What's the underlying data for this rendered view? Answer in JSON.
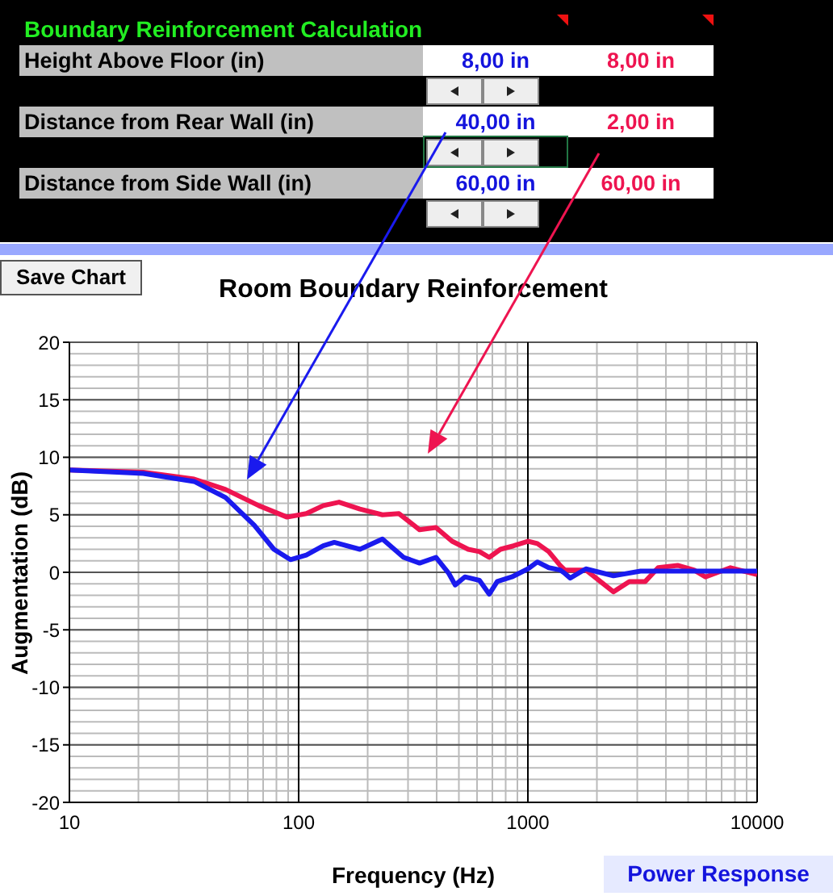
{
  "chart_data": [
    {
      "type": "other",
      "title": "Boundary Reinforcement Calculation",
      "annotations": [
        "Height Above Floor (in)",
        "8,00 in",
        "8,00 in",
        "Distance from Rear Wall (in)",
        "40,00 in",
        "2,00 in",
        "Distance from Side Wall (in)",
        "60,00 in",
        "60,00 in"
      ]
    },
    {
      "type": "line",
      "title": "Room Boundary Reinforcement",
      "xlabel": "Frequency (Hz)",
      "ylabel": "Augmentation (dB)",
      "log": "x",
      "xlim": [
        10,
        10000
      ],
      "xticks": [
        10,
        100,
        1000,
        10000
      ],
      "ylim": [
        -20,
        20
      ],
      "yticks": [
        -20,
        -15,
        -10,
        -5,
        0,
        5,
        10,
        15,
        20
      ],
      "grid": true,
      "marker": "none",
      "line_style": "solid",
      "annotations": [
        "Save Chart",
        "Power Response"
      ],
      "series": [
        {
          "color": "#1a1aee",
          "x": [
            10,
            21,
            35,
            48,
            64,
            78,
            92,
            108,
            128,
            143,
            185,
            232,
            287,
            337,
            397,
            452,
            482,
            531,
            615,
            678,
            735,
            851,
            1000,
            1100,
            1233,
            1382,
            1450,
            1530,
            1790,
            2360,
            3100,
            5300,
            10000
          ],
          "values": [
            8.9,
            8.6,
            7.9,
            6.5,
            4.1,
            2,
            1.1,
            1.5,
            2.3,
            2.6,
            2,
            2.9,
            1.3,
            0.8,
            1.3,
            -0.1,
            -1.1,
            -0.4,
            -0.7,
            -1.9,
            -0.8,
            -0.4,
            0.3,
            0.9,
            0.4,
            0.2,
            -0.1,
            -0.5,
            0.3,
            -0.3,
            0.1,
            0.1,
            0.1
          ]
        },
        {
          "color": "#ee1450",
          "x": [
            10,
            21,
            35,
            48,
            67,
            89,
            108,
            128,
            150,
            185,
            232,
            274,
            337,
            397,
            467,
            549,
            615,
            678,
            759,
            865,
            1000,
            1100,
            1233,
            1382,
            1450,
            1790,
            2360,
            2770,
            3250,
            3700,
            4500,
            5300,
            5950,
            7650,
            10000
          ],
          "values": [
            8.9,
            8.7,
            8.1,
            7.2,
            5.8,
            4.8,
            5.1,
            5.8,
            6.1,
            5.5,
            5,
            5.1,
            3.7,
            3.9,
            2.7,
            2,
            1.8,
            1.3,
            2,
            2.3,
            2.7,
            2.5,
            1.8,
            0.6,
            0.2,
            0.2,
            -1.7,
            -0.8,
            -0.8,
            0.4,
            0.6,
            0.2,
            -0.4,
            0.4,
            -0.2
          ]
        }
      ]
    }
  ]
}
